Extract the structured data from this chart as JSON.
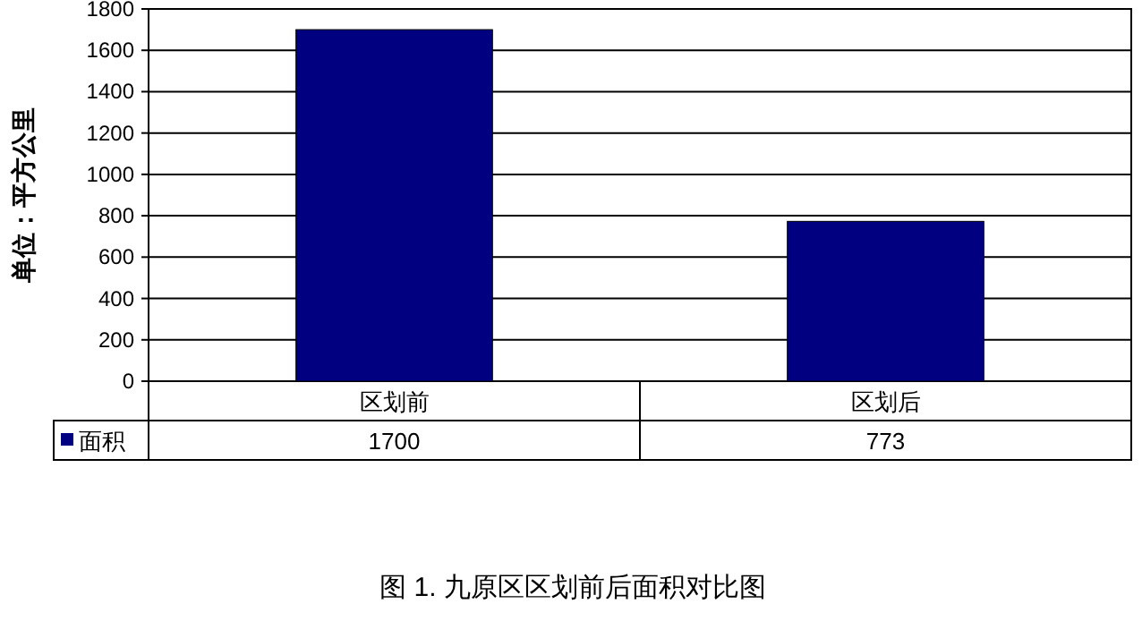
{
  "chart_data": {
    "type": "bar",
    "title": "图 1. 九原区区划前后面积对比图",
    "ylabel": "单位：平方公里",
    "categories": [
      "区划前",
      "区划后"
    ],
    "series": [
      {
        "name": "面积",
        "color": "#000080",
        "values": [
          1700,
          773
        ]
      }
    ],
    "ylim": [
      0,
      1800
    ],
    "yticks": [
      0,
      200,
      400,
      600,
      800,
      1000,
      1200,
      1400,
      1600,
      1800
    ],
    "grid": "y",
    "data_labels": true,
    "legend": "bottom left"
  }
}
